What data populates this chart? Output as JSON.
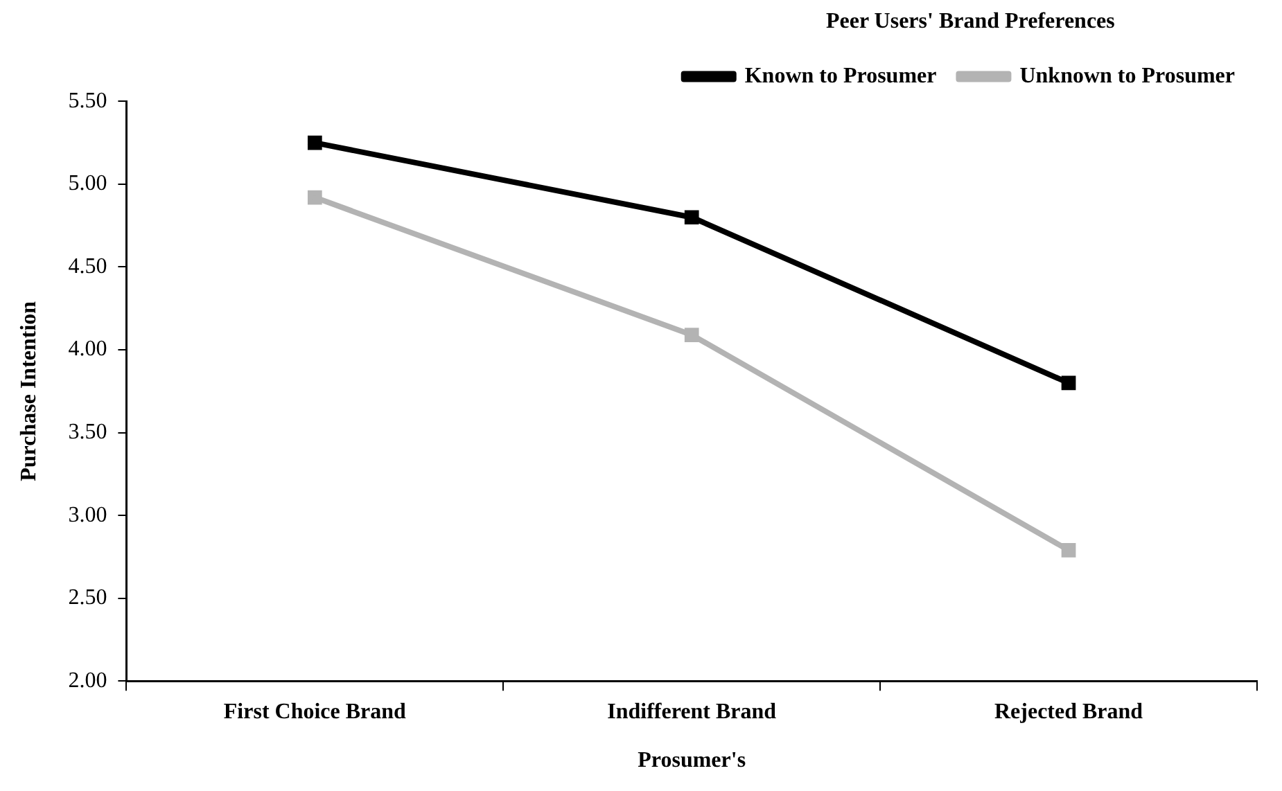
{
  "chart_data": {
    "type": "line",
    "xlabel": "Prosumer's",
    "ylabel": "Purchase Intention",
    "legend_title": "Peer Users' Brand Preferences",
    "categories": [
      "First Choice Brand",
      "Indifferent Brand",
      "Rejected Brand"
    ],
    "series": [
      {
        "name": "Known to Prosumer",
        "color": "#000000",
        "values": [
          5.25,
          4.8,
          3.8
        ]
      },
      {
        "name": "Unknown to Prosumer",
        "color": "#b3b3b3",
        "values": [
          4.92,
          4.09,
          2.79
        ]
      }
    ],
    "ylim": [
      2,
      5.5
    ],
    "yticks": [
      {
        "value": 2,
        "label": "2.00"
      },
      {
        "value": 2.5,
        "label": "2.50"
      },
      {
        "value": 3,
        "label": "3.00"
      },
      {
        "value": 3.5,
        "label": "3.50"
      },
      {
        "value": 4,
        "label": "4.00"
      },
      {
        "value": 4.5,
        "label": "4.50"
      },
      {
        "value": 5,
        "label": "5.00"
      },
      {
        "value": 5.5,
        "label": "5.50"
      }
    ],
    "grid": false,
    "legend": "top right",
    "marker": "square",
    "line_style": "solid"
  }
}
